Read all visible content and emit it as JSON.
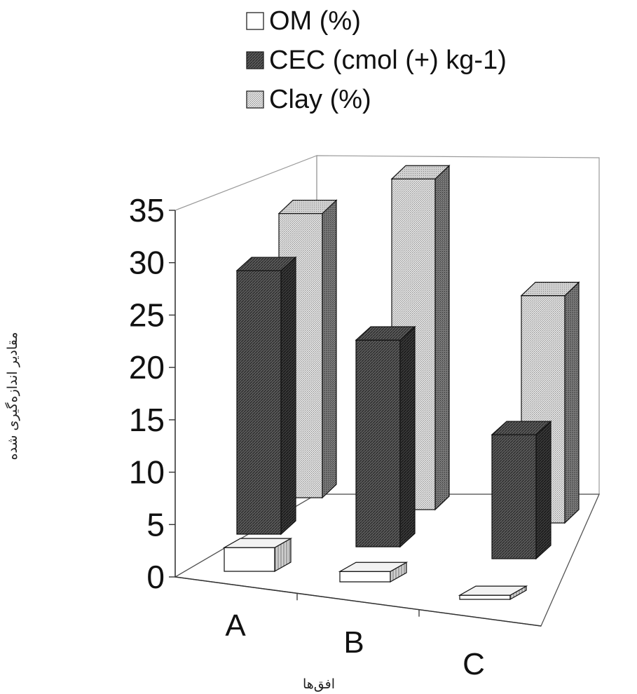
{
  "chart_data": {
    "type": "bar",
    "categories": [
      "A",
      "B",
      "C"
    ],
    "series": [
      {
        "name": "OM (%)",
        "values": [
          2.3,
          1.0,
          0.4
        ],
        "pattern": "white"
      },
      {
        "name": "CEC (cmol (+) kg-1)",
        "values": [
          25.5,
          20.0,
          12.0
        ],
        "pattern": "dark"
      },
      {
        "name": "Clay (%)",
        "values": [
          27.5,
          32.0,
          22.0
        ],
        "pattern": "light"
      }
    ],
    "ylim": [
      0,
      35
    ],
    "yticks": [
      "0",
      "5",
      "10",
      "15",
      "20",
      "25",
      "30",
      "35"
    ],
    "xlabel": "افق‌ها",
    "ylabel": "مقادیر اندازه‌گیری شده",
    "legend_position": "top",
    "grid": false,
    "three_d": true
  }
}
